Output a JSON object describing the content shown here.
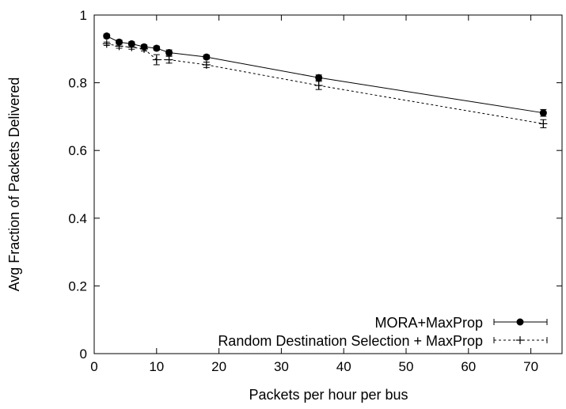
{
  "chart_data": {
    "type": "line",
    "xlabel": "Packets per hour per bus",
    "ylabel": "Avg Fraction of Packets Delivered",
    "xlim": [
      0,
      75
    ],
    "ylim": [
      0,
      1
    ],
    "xticks": [
      "0",
      "10",
      "20",
      "30",
      "40",
      "50",
      "60",
      "70"
    ],
    "yticks": [
      "0",
      "0.2",
      "0.4",
      "0.6",
      "0.8",
      "1"
    ],
    "legend_position": "bottom-right",
    "grid": false,
    "series": [
      {
        "name": "MORA+MaxProp",
        "marker": "filled-circle",
        "line_style": "solid",
        "color": "#000000",
        "x": [
          2,
          4,
          6,
          8,
          10,
          12,
          18,
          36,
          72
        ],
        "y": [
          0.938,
          0.92,
          0.915,
          0.906,
          0.902,
          0.889,
          0.876,
          0.815,
          0.711
        ],
        "err": [
          0.006,
          0.006,
          0.006,
          0.006,
          0.006,
          0.008,
          0.006,
          0.008,
          0.01
        ]
      },
      {
        "name": "Random Destination Selection + MaxProp",
        "marker": "plus",
        "line_style": "dashed",
        "color": "#000000",
        "x": [
          2,
          4,
          6,
          8,
          10,
          12,
          18,
          36,
          72
        ],
        "y": [
          0.915,
          0.908,
          0.905,
          0.9,
          0.868,
          0.868,
          0.853,
          0.792,
          0.679
        ],
        "err": [
          0.005,
          0.006,
          0.006,
          0.006,
          0.015,
          0.01,
          0.008,
          0.012,
          0.012
        ]
      }
    ]
  }
}
